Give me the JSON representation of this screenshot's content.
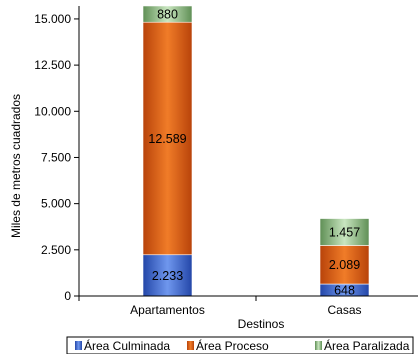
{
  "chart_data": {
    "type": "bar",
    "stacked": true,
    "categories": [
      "Apartamentos",
      "Casas"
    ],
    "series": [
      {
        "name": "Área Culminada",
        "values": [
          2233,
          648
        ],
        "labels": [
          "2.233",
          "648"
        ],
        "color": "#3f6fd6"
      },
      {
        "name": "Área Proceso",
        "values": [
          12589,
          2089
        ],
        "labels": [
          "12.589",
          "2.089"
        ],
        "color": "#e8620c"
      },
      {
        "name": "Área Paralizada",
        "values": [
          880,
          1457
        ],
        "labels": [
          "880",
          "1.457"
        ],
        "color": "#97c48b"
      }
    ],
    "yticks": [
      {
        "v": 0,
        "label": "0"
      },
      {
        "v": 2500,
        "label": "2.500"
      },
      {
        "v": 5000,
        "label": "5.000"
      },
      {
        "v": 7500,
        "label": "7.500"
      },
      {
        "v": 10000,
        "label": "10.000"
      },
      {
        "v": 12500,
        "label": "12.500"
      },
      {
        "v": 15000,
        "label": "15.000"
      }
    ],
    "ylim": [
      0,
      15700
    ],
    "xlabel": "Destinos",
    "ylabel": "Miles de metros cuadrados",
    "legend_position": "bottom",
    "grid": false
  }
}
